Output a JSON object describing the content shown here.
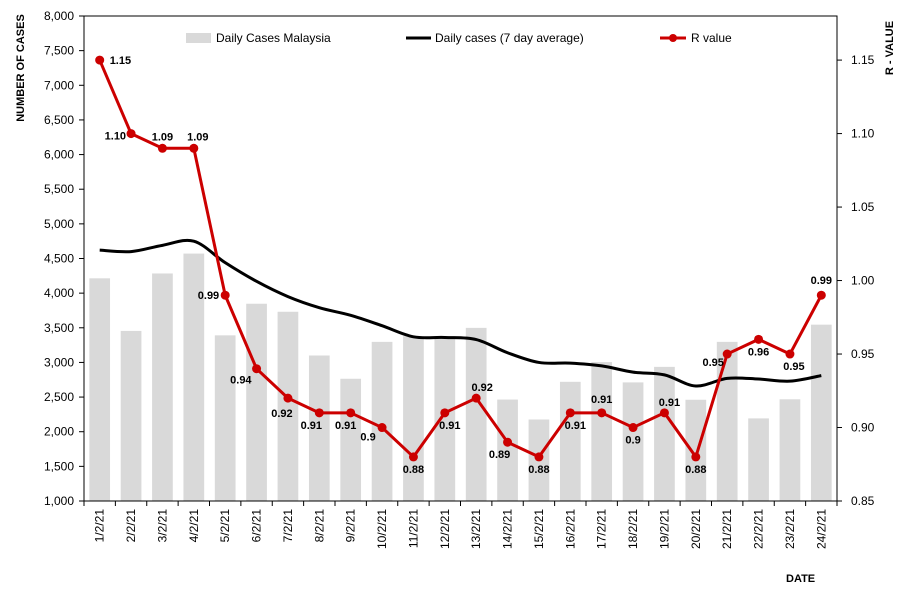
{
  "chart_data": {
    "type": "bar+line",
    "xlabel": "DATE",
    "ylabel_left": "NUMBER  OF CASES",
    "ylabel_right": "R - VALUE",
    "ylim_left": [
      1000,
      8000
    ],
    "yticks_left": [
      "1,000",
      "1,500",
      "2,000",
      "2,500",
      "3,000",
      "3,500",
      "4,000",
      "4,500",
      "5,000",
      "5,500",
      "6,000",
      "6,500",
      "7,000",
      "7,500",
      "8,000"
    ],
    "ylim_right": [
      0.85,
      1.18
    ],
    "yticks_right": [
      "0.85",
      "0.90",
      "0.95",
      "1.00",
      "1.05",
      "1.10",
      "1.15"
    ],
    "categories": [
      "1/2/21",
      "2/2/21",
      "3/2/21",
      "4/2/21",
      "5/2/21",
      "6/2/21",
      "7/2/21",
      "8/2/21",
      "9/2/21",
      "10/2/21",
      "11/2/21",
      "12/2/21",
      "13/2/21",
      "14/2/21",
      "15/2/21",
      "16/2/21",
      "17/2/21",
      "18/2/21",
      "19/2/21",
      "20/2/21",
      "21/2/21",
      "22/2/21",
      "23/2/21",
      "24/2/21"
    ],
    "series": [
      {
        "name": "Daily Cases Malaysia",
        "kind": "bar",
        "color": "#d9d9d9",
        "values": [
          4214,
          3455,
          4284,
          4571,
          3391,
          3847,
          3731,
          3100,
          2764,
          3297,
          3379,
          3346,
          3499,
          2464,
          2176,
          2720,
          3005,
          2712,
          2936,
          2461,
          3297,
          2192,
          2468,
          3545
        ]
      },
      {
        "name": "Daily cases (7 day average)",
        "kind": "line",
        "color": "#000000",
        "values": [
          4620,
          4600,
          4690,
          4750,
          4440,
          4170,
          3950,
          3790,
          3680,
          3530,
          3370,
          3360,
          3330,
          3140,
          3000,
          2990,
          2950,
          2860,
          2820,
          2660,
          2770,
          2760,
          2730,
          2810
        ]
      },
      {
        "name": "R value",
        "kind": "line-marker",
        "color": "#cc0000",
        "axis": "right",
        "values": [
          1.15,
          1.1,
          1.09,
          1.09,
          0.99,
          0.94,
          0.92,
          0.91,
          0.91,
          0.9,
          0.88,
          0.91,
          0.92,
          0.89,
          0.88,
          0.91,
          0.91,
          0.9,
          0.91,
          0.88,
          0.95,
          0.96,
          0.95,
          0.99
        ],
        "labels": [
          "1.15",
          "1.10",
          "1.09",
          "1.09",
          "0.99",
          "0.94",
          "0.92",
          "0.91",
          "0.91",
          "0.9",
          "0.88",
          "0.91",
          "0.92",
          "0.89",
          "0.88",
          "0.91",
          "0.91",
          "0.9",
          "0.91",
          "0.88",
          "0.95",
          "0.96",
          "0.95",
          "0.99"
        ]
      }
    ],
    "legend_position": "top",
    "grid": false
  }
}
